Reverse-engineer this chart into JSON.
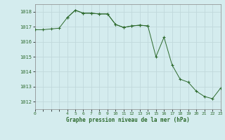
{
  "title": "Graphe pression niveau de la mer (hPa)",
  "bg_color": "#d4ecee",
  "line_color": "#2d6a2d",
  "marker_color": "#2d6a2d",
  "grid_major_color": "#c0d8dc",
  "grid_minor_color": "#d0e8ea",
  "tick_label_color": "#2d6a2d",
  "axis_label_color": "#2d6a2d",
  "spine_color": "#888888",
  "xlim": [
    0,
    23
  ],
  "ylim": [
    1011.5,
    1018.5
  ],
  "yticks": [
    1012,
    1013,
    1014,
    1015,
    1016,
    1017,
    1018
  ],
  "xtick_labels": [
    "0",
    "",
    "",
    "",
    "4",
    "5",
    "6",
    "7",
    "8",
    "9",
    "10",
    "11",
    "12",
    "13",
    "14",
    "15",
    "16",
    "17",
    "18",
    "19",
    "20",
    "21",
    "22",
    "23"
  ],
  "xtick_positions": [
    0,
    1,
    2,
    3,
    4,
    5,
    6,
    7,
    8,
    9,
    10,
    11,
    12,
    13,
    14,
    15,
    16,
    17,
    18,
    19,
    20,
    21,
    22,
    23
  ],
  "series1_x": [
    0,
    1,
    2,
    3,
    4,
    5,
    6,
    7,
    8,
    9,
    10,
    11,
    12,
    13,
    14
  ],
  "series1_y": [
    1016.8,
    1016.8,
    1016.85,
    1016.9,
    1017.6,
    1018.1,
    1017.9,
    1017.9,
    1017.85,
    1017.85,
    1017.15,
    1016.95,
    1017.05,
    1017.1,
    1017.05
  ],
  "series2_x": [
    4,
    5,
    6,
    7,
    8,
    9,
    10,
    11,
    12,
    13,
    14,
    15,
    16,
    17,
    18,
    19,
    20,
    21,
    22,
    23
  ],
  "series2_y": [
    1017.6,
    1018.1,
    1017.9,
    1017.9,
    1017.85,
    1017.85,
    1017.15,
    1016.95,
    1017.05,
    1017.1,
    1017.05,
    1015.0,
    1016.3,
    1014.45,
    1013.5,
    1013.3,
    1012.7,
    1012.35,
    1012.2,
    1012.9
  ]
}
